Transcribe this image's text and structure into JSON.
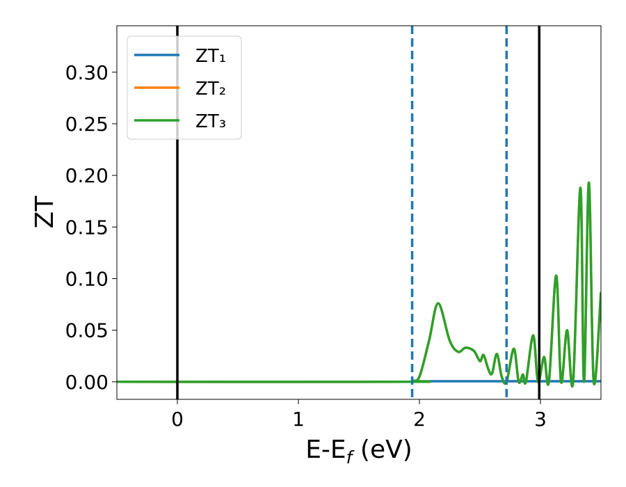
{
  "chart_data": {
    "type": "line",
    "ylabel": "ZT",
    "xlabel": [
      "E-E",
      "f",
      " (eV)"
    ],
    "x": [
      -0.5,
      1.9,
      1.94,
      2.0,
      2.08,
      2.155,
      2.25,
      2.32,
      2.38,
      2.45,
      2.5,
      2.53,
      2.57,
      2.6,
      2.64,
      2.68,
      2.72,
      2.78,
      2.82,
      2.855,
      2.88,
      2.94,
      2.98,
      3.03,
      3.07,
      3.13,
      3.17,
      3.22,
      3.27,
      3.33,
      3.36,
      3.4,
      3.44,
      3.5
    ],
    "series": [
      {
        "name": "ZT₁",
        "color": "#1f77b4",
        "values": [
          0,
          0,
          0.0005,
          0.0005,
          0.0005,
          0.0005,
          0.0005,
          0.0005,
          0.0005,
          0.0005,
          0.0005,
          0.0005,
          0.0005,
          0.0005,
          0.0005,
          0.0005,
          0.0005,
          0.0005,
          0.0005,
          0.0005,
          0.0005,
          0.0005,
          0.0005,
          0.0005,
          0.0005,
          0.0005,
          0.0005,
          0.0005,
          0.0005,
          0.0005,
          0.0005,
          0.0005,
          0.0005,
          0.0005
        ]
      },
      {
        "name": "ZT₂",
        "color": "#ff7f0e",
        "values": [
          0,
          0,
          0.001,
          0.005,
          0.04,
          0.076,
          0.04,
          0.029,
          0.033,
          0.03,
          0.02,
          0.026,
          0.012,
          0.008,
          0.027,
          0.005,
          0,
          0.032,
          0,
          0.007,
          0,
          0.045,
          0,
          0.024,
          0,
          0.103,
          0,
          0.05,
          0,
          0.188,
          0,
          0.193,
          0,
          0.087
        ]
      },
      {
        "name": "ZT₃",
        "color": "#2ca02c",
        "values": [
          0,
          0,
          0.001,
          0.005,
          0.04,
          0.076,
          0.04,
          0.029,
          0.033,
          0.03,
          0.02,
          0.026,
          0.012,
          0.008,
          0.027,
          0.005,
          0,
          0.032,
          0,
          0.007,
          0,
          0.045,
          0,
          0.024,
          0,
          0.103,
          0,
          0.05,
          0,
          0.188,
          0,
          0.193,
          0,
          0.087
        ]
      }
    ],
    "vlines": [
      {
        "x": 0,
        "color": "#000000",
        "style": "solid"
      },
      {
        "x": 2.99,
        "color": "#000000",
        "style": "solid"
      },
      {
        "x": 1.94,
        "color": "#1f77b4",
        "style": "dashed"
      },
      {
        "x": 2.72,
        "color": "#1f77b4",
        "style": "dashed"
      }
    ],
    "xlim": [
      -0.5,
      3.5
    ],
    "ylim": [
      -0.017,
      0.345
    ],
    "xticks": [
      0,
      1,
      2,
      3
    ],
    "yticks": [
      {
        "value": 0,
        "label": "0.00"
      },
      {
        "value": 0.05,
        "label": "0.05"
      },
      {
        "value": 0.1,
        "label": "0.10"
      },
      {
        "value": 0.15,
        "label": "0.15"
      },
      {
        "value": 0.2,
        "label": "0.20"
      },
      {
        "value": 0.25,
        "label": "0.25"
      },
      {
        "value": 0.3,
        "label": "0.30"
      }
    ],
    "legend": "upper left"
  }
}
